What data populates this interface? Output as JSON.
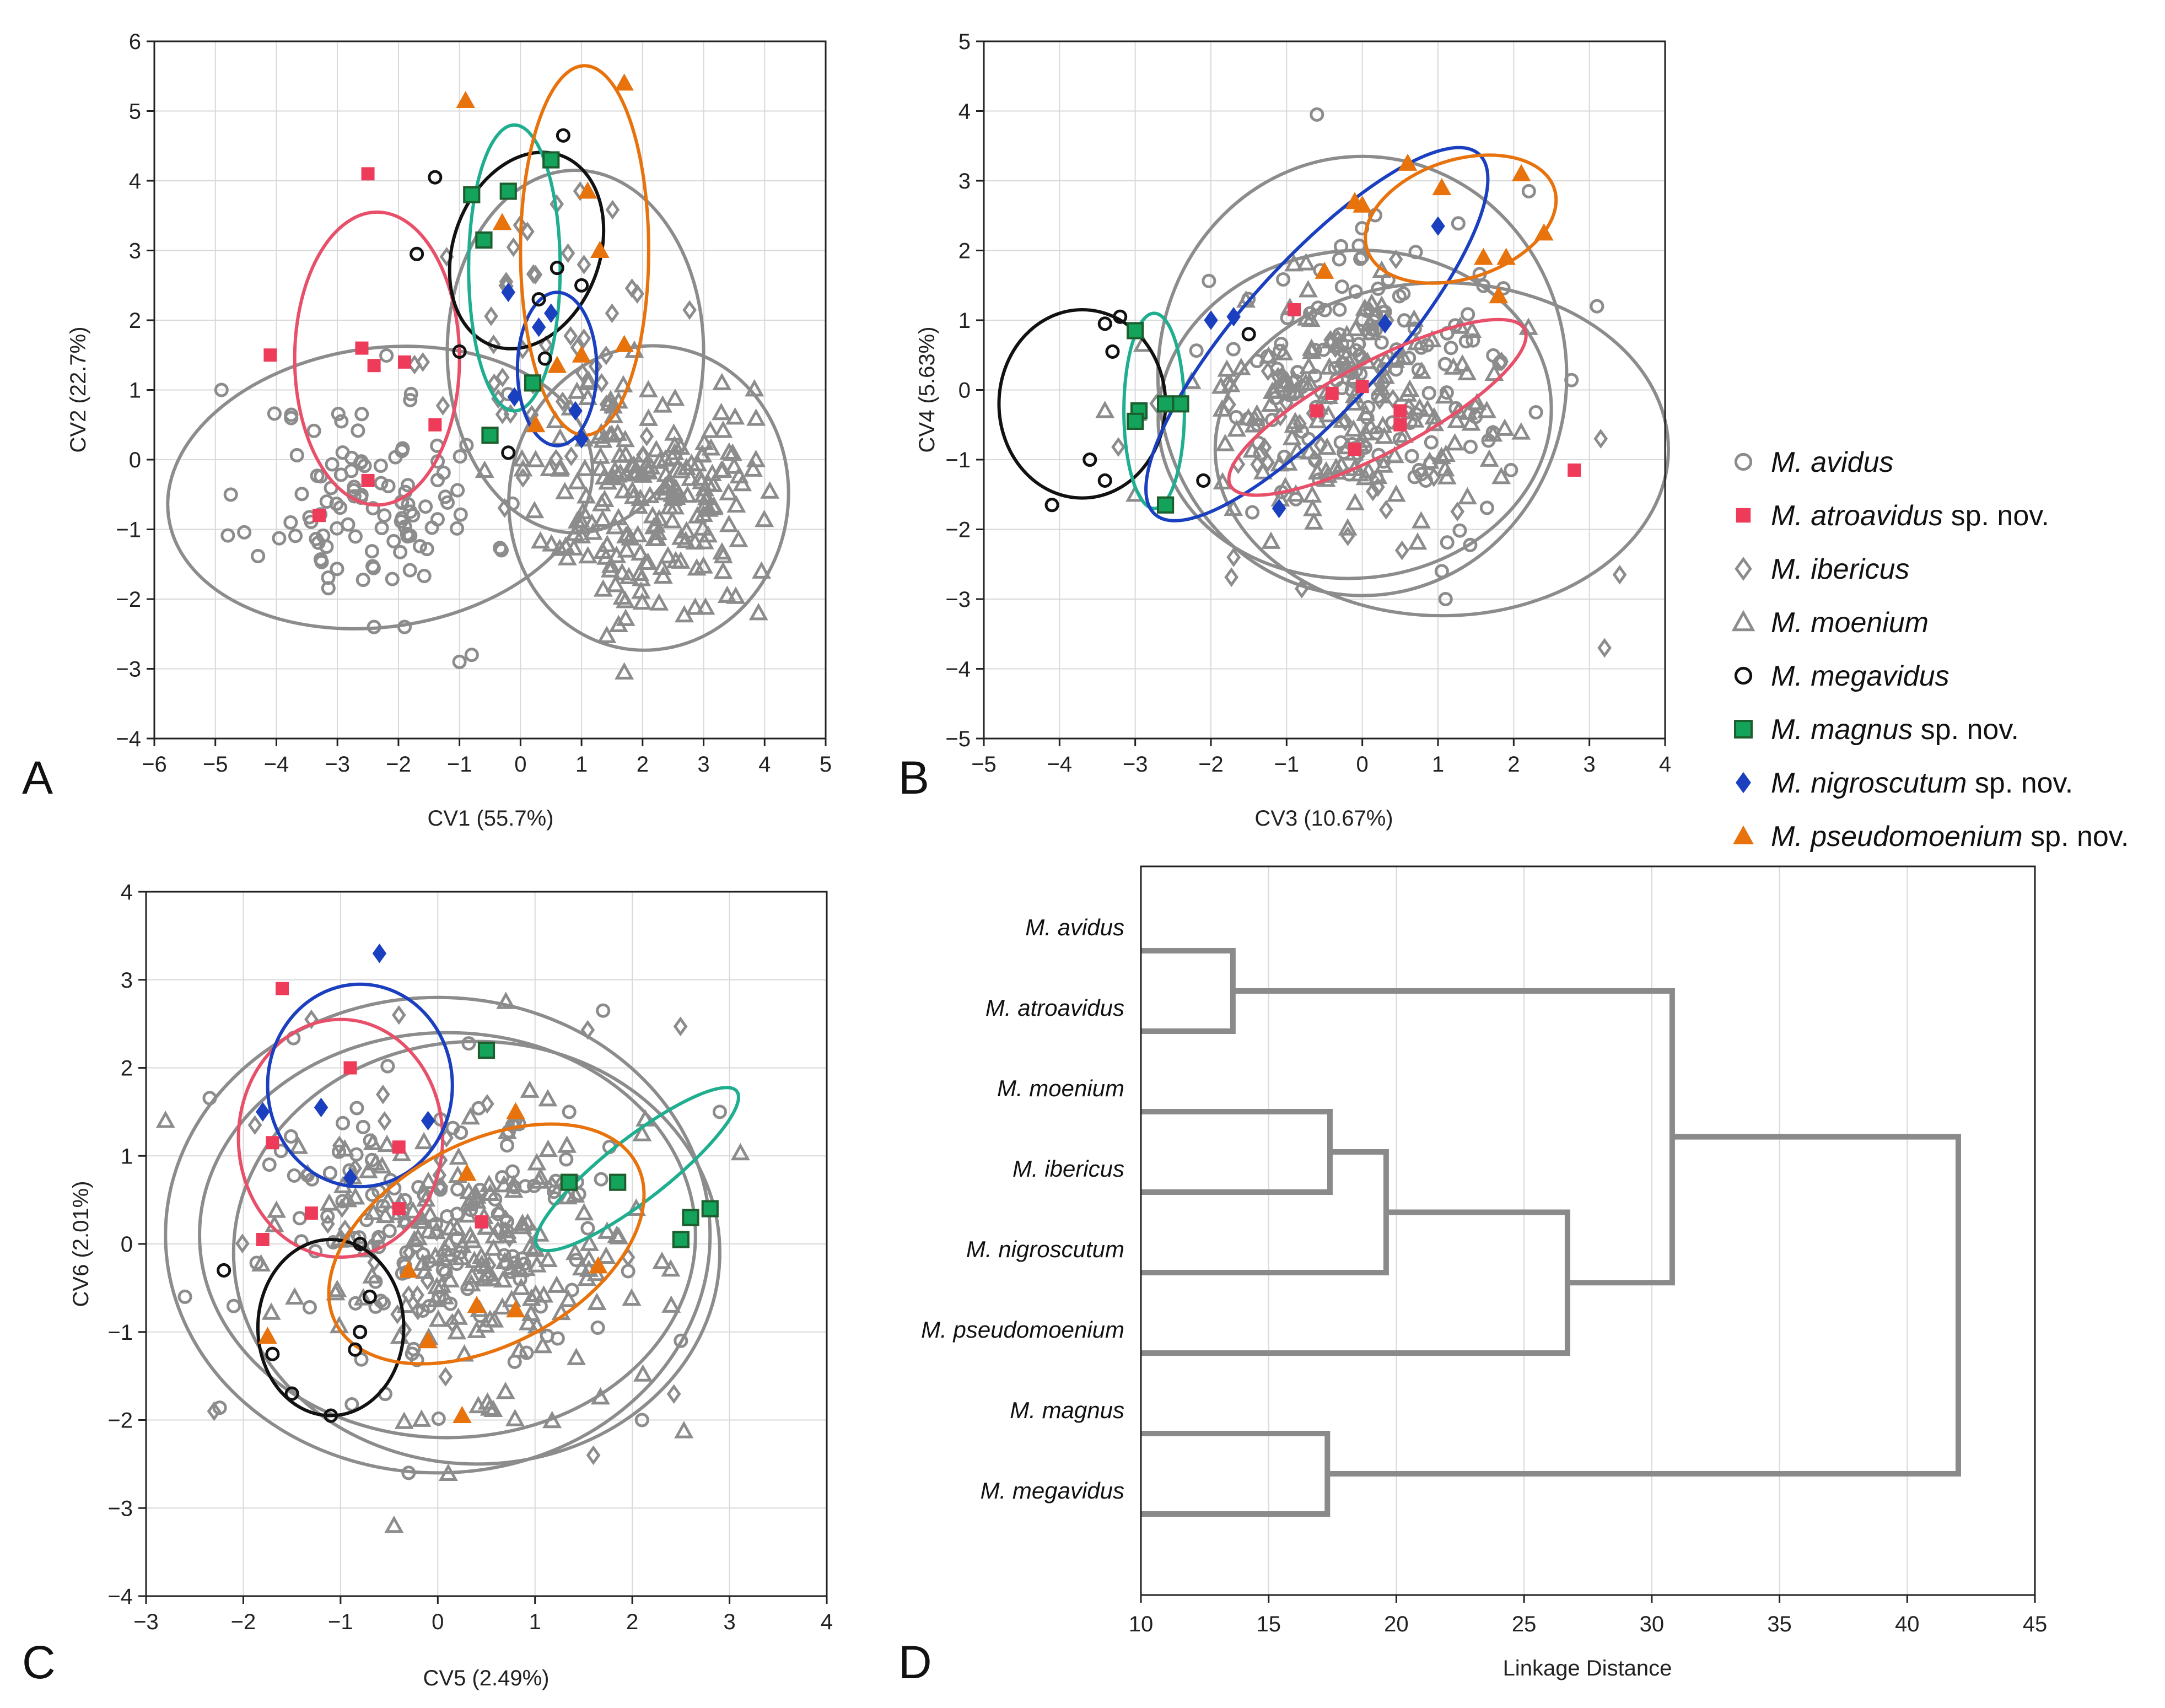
{
  "chart_data": [
    {
      "panel": "A",
      "type": "scatter",
      "xlabel": "CV1 (55.7%)",
      "ylabel": "CV2 (22.7%)",
      "xlim": [
        -6,
        5
      ],
      "ylim": [
        -4,
        6
      ],
      "xticks": [
        -6,
        -5,
        -4,
        -3,
        -2,
        -1,
        0,
        1,
        2,
        3,
        4,
        5
      ],
      "yticks": [
        -4,
        -3,
        -2,
        -1,
        0,
        1,
        2,
        3,
        4,
        5,
        6
      ],
      "grid": true,
      "ellipses": [
        {
          "series": "M. avidus",
          "cx": -2.3,
          "cy": -0.4,
          "rx": 3.5,
          "ry": 2.0,
          "angle": 8
        },
        {
          "series": "M. ibericus",
          "cx": 0.9,
          "cy": 1.55,
          "rx": 2.1,
          "ry": 2.6,
          "angle": 0
        },
        {
          "series": "M. moenium",
          "cx": 2.1,
          "cy": -0.55,
          "rx": 2.5,
          "ry": 2.0,
          "angle": 80
        },
        {
          "series": "M. atroavidus sp. nov.",
          "cx": -2.35,
          "cy": 1.45,
          "rx": 1.35,
          "ry": 2.1,
          "angle": 0
        },
        {
          "series": "M. megavidus",
          "cx": 0.1,
          "cy": 3.0,
          "rx": 1.2,
          "ry": 1.45,
          "angle": -20
        },
        {
          "series": "M. magnus sp. nov.",
          "cx": -0.1,
          "cy": 2.75,
          "rx": 0.75,
          "ry": 2.05,
          "angle": 0
        },
        {
          "series": "M. nigroscutum sp. nov.",
          "cx": 0.6,
          "cy": 1.3,
          "rx": 0.65,
          "ry": 1.1,
          "angle": 0
        },
        {
          "series": "M. pseudomoenium sp. nov.",
          "cx": 1.05,
          "cy": 3.0,
          "rx": 1.05,
          "ry": 2.65,
          "angle": 0
        }
      ],
      "series": [
        {
          "name": "M. atroavidus sp. nov.",
          "points": [
            [
              -2.5,
              4.1
            ],
            [
              -4.1,
              1.5
            ],
            [
              -2.6,
              1.6
            ],
            [
              -2.4,
              1.35
            ],
            [
              -1.9,
              1.4
            ],
            [
              -1.4,
              0.5
            ],
            [
              -2.5,
              -0.3
            ],
            [
              -3.3,
              -0.8
            ]
          ]
        },
        {
          "name": "M. megavidus",
          "points": [
            [
              -1.4,
              4.05
            ],
            [
              -1.7,
              2.95
            ],
            [
              -1.0,
              1.55
            ],
            [
              0.3,
              2.3
            ],
            [
              0.6,
              2.75
            ],
            [
              0.7,
              4.65
            ],
            [
              1.0,
              2.5
            ],
            [
              0.4,
              1.45
            ],
            [
              -0.2,
              0.1
            ]
          ]
        },
        {
          "name": "M. magnus sp. nov.",
          "points": [
            [
              -0.8,
              3.8
            ],
            [
              -0.6,
              3.15
            ],
            [
              -0.2,
              3.85
            ],
            [
              0.5,
              4.3
            ],
            [
              0.2,
              1.1
            ],
            [
              -0.5,
              0.35
            ]
          ]
        },
        {
          "name": "M. nigroscutum sp. nov.",
          "points": [
            [
              -0.2,
              2.4
            ],
            [
              0.5,
              2.1
            ],
            [
              0.3,
              1.9
            ],
            [
              -0.1,
              0.9
            ],
            [
              0.9,
              0.7
            ],
            [
              1.0,
              0.3
            ]
          ]
        },
        {
          "name": "M. pseudomoenium sp. nov.",
          "points": [
            [
              -0.9,
              5.15
            ],
            [
              1.7,
              5.4
            ],
            [
              1.1,
              3.85
            ],
            [
              1.3,
              3.0
            ],
            [
              -0.3,
              3.4
            ],
            [
              0.6,
              1.35
            ],
            [
              1.7,
              1.65
            ],
            [
              1.0,
              1.5
            ],
            [
              0.25,
              0.5
            ]
          ]
        }
      ]
    },
    {
      "panel": "B",
      "type": "scatter",
      "xlabel": "CV3 (10.67%)",
      "ylabel": "CV4 (5.63%)",
      "xlim": [
        -5,
        4
      ],
      "ylim": [
        -5,
        5
      ],
      "xticks": [
        -5,
        -4,
        -3,
        -2,
        -1,
        0,
        1,
        2,
        3,
        4
      ],
      "yticks": [
        -5,
        -4,
        -3,
        -2,
        -1,
        0,
        1,
        2,
        3,
        4,
        5
      ],
      "grid": true,
      "ellipses": [
        {
          "series": "M. avidus",
          "cx": 0.0,
          "cy": 0.2,
          "rx": 2.7,
          "ry": 3.15,
          "angle": 0
        },
        {
          "series": "M. ibericus",
          "cx": -0.1,
          "cy": -0.35,
          "rx": 2.6,
          "ry": 2.35,
          "angle": 5
        },
        {
          "series": "M. moenium",
          "cx": 1.05,
          "cy": -0.85,
          "rx": 2.2,
          "ry": 3.25,
          "angle": 90
        },
        {
          "series": "M. megavidus",
          "cx": -3.7,
          "cy": -0.2,
          "rx": 1.1,
          "ry": 1.35,
          "angle": 0
        },
        {
          "series": "M. magnus sp. nov.",
          "cx": -2.75,
          "cy": -0.3,
          "rx": 0.4,
          "ry": 1.4,
          "angle": 0
        },
        {
          "series": "M. nigroscutum sp. nov.",
          "cx": -0.6,
          "cy": 0.8,
          "rx": 3.2,
          "ry": 1.05,
          "angle": 48
        },
        {
          "series": "M. atroavidus sp. nov.",
          "cx": 0.2,
          "cy": -0.25,
          "rx": 2.2,
          "ry": 0.65,
          "angle": 28
        },
        {
          "series": "M. pseudomoenium sp. nov.",
          "cx": 1.3,
          "cy": 2.45,
          "rx": 1.3,
          "ry": 0.85,
          "angle": 18
        }
      ],
      "series": [
        {
          "name": "M. atroavidus sp. nov.",
          "points": [
            [
              -0.9,
              1.15
            ],
            [
              -0.6,
              -0.3
            ],
            [
              -0.4,
              -0.05
            ],
            [
              0.0,
              0.05
            ],
            [
              -0.1,
              -0.85
            ],
            [
              0.5,
              -0.5
            ],
            [
              0.5,
              -0.3
            ],
            [
              2.8,
              -1.15
            ]
          ]
        },
        {
          "name": "M. megavidus",
          "points": [
            [
              -3.4,
              0.95
            ],
            [
              -3.2,
              1.05
            ],
            [
              -3.3,
              0.55
            ],
            [
              -3.6,
              -1.0
            ],
            [
              -3.4,
              -1.3
            ],
            [
              -4.1,
              -1.65
            ],
            [
              -2.1,
              -1.3
            ],
            [
              -1.5,
              0.8
            ]
          ]
        },
        {
          "name": "M. magnus sp. nov.",
          "points": [
            [
              -3.0,
              0.85
            ],
            [
              -2.95,
              -0.3
            ],
            [
              -3.0,
              -0.45
            ],
            [
              -2.6,
              -0.2
            ],
            [
              -2.4,
              -0.2
            ],
            [
              -2.6,
              -1.65
            ]
          ]
        },
        {
          "name": "M. nigroscutum sp. nov.",
          "points": [
            [
              -2.0,
              1.0
            ],
            [
              -1.7,
              1.05
            ],
            [
              1.0,
              2.35
            ],
            [
              0.3,
              0.95
            ],
            [
              -1.1,
              -1.7
            ]
          ]
        },
        {
          "name": "M. pseudomoenium sp. nov.",
          "points": [
            [
              0.6,
              3.25
            ],
            [
              1.05,
              2.9
            ],
            [
              2.1,
              3.1
            ],
            [
              2.4,
              2.25
            ],
            [
              1.6,
              1.9
            ],
            [
              1.9,
              1.9
            ],
            [
              1.8,
              1.35
            ],
            [
              -0.1,
              2.7
            ],
            [
              0.0,
              2.65
            ],
            [
              -0.5,
              1.7
            ]
          ]
        }
      ]
    },
    {
      "panel": "C",
      "type": "scatter",
      "xlabel": "CV5 (2.49%)",
      "ylabel": "CV6 (2.01%)",
      "xlim": [
        -3,
        4
      ],
      "ylim": [
        -4,
        4
      ],
      "xticks": [
        -3,
        -2,
        -1,
        0,
        1,
        2,
        3,
        4
      ],
      "yticks": [
        -4,
        -3,
        -2,
        -1,
        0,
        1,
        2,
        3,
        4
      ],
      "grid": true,
      "ellipses": [
        {
          "series": "M. avidus",
          "cx": 0.0,
          "cy": 0.1,
          "rx": 2.8,
          "ry": 2.7,
          "angle": 0
        },
        {
          "series": "M. ibericus",
          "cx": 0.1,
          "cy": 0.1,
          "rx": 2.55,
          "ry": 2.3,
          "angle": 0
        },
        {
          "series": "M. moenium",
          "cx": 0.4,
          "cy": -0.1,
          "rx": 2.5,
          "ry": 2.4,
          "angle": 0
        },
        {
          "series": "M. atroavidus sp. nov.",
          "cx": -1.0,
          "cy": 1.2,
          "rx": 1.05,
          "ry": 1.35,
          "angle": 0
        },
        {
          "series": "M. nigroscutum sp. nov.",
          "cx": -0.8,
          "cy": 1.8,
          "rx": 0.95,
          "ry": 1.15,
          "angle": 0
        },
        {
          "series": "M. megavidus",
          "cx": -1.1,
          "cy": -0.95,
          "rx": 0.75,
          "ry": 1.0,
          "angle": 0
        },
        {
          "series": "M. magnus sp. nov.",
          "cx": 2.05,
          "cy": 0.85,
          "rx": 1.3,
          "ry": 0.35,
          "angle": 38
        },
        {
          "series": "M. pseudomoenium sp. nov.",
          "cx": 0.5,
          "cy": 0.0,
          "rx": 1.75,
          "ry": 1.15,
          "angle": 28
        }
      ],
      "series": [
        {
          "name": "M. atroavidus sp. nov.",
          "points": [
            [
              -1.6,
              2.9
            ],
            [
              -0.9,
              2.0
            ],
            [
              -1.7,
              1.15
            ],
            [
              -0.4,
              1.1
            ],
            [
              -1.3,
              0.35
            ],
            [
              -0.4,
              0.4
            ],
            [
              -1.8,
              0.05
            ],
            [
              0.45,
              0.25
            ]
          ]
        },
        {
          "name": "M. megavidus",
          "points": [
            [
              -2.2,
              -0.3
            ],
            [
              -0.8,
              0.0
            ],
            [
              -0.7,
              -0.6
            ],
            [
              -0.8,
              -1.0
            ],
            [
              -0.85,
              -1.2
            ],
            [
              -1.5,
              -1.7
            ],
            [
              -1.7,
              -1.25
            ],
            [
              -1.1,
              -1.95
            ]
          ]
        },
        {
          "name": "M. magnus sp. nov.",
          "points": [
            [
              0.5,
              2.2
            ],
            [
              1.35,
              0.7
            ],
            [
              1.85,
              0.7
            ],
            [
              2.6,
              0.3
            ],
            [
              2.8,
              0.4
            ],
            [
              2.5,
              0.05
            ]
          ]
        },
        {
          "name": "M. nigroscutum sp. nov.",
          "points": [
            [
              -0.6,
              3.3
            ],
            [
              -1.8,
              1.5
            ],
            [
              -1.2,
              1.55
            ],
            [
              -0.1,
              1.4
            ],
            [
              -0.9,
              0.75
            ]
          ]
        },
        {
          "name": "M. pseudomoenium sp. nov.",
          "points": [
            [
              0.8,
              1.5
            ],
            [
              0.3,
              0.8
            ],
            [
              -0.3,
              -0.3
            ],
            [
              1.65,
              -0.25
            ],
            [
              0.4,
              -0.7
            ],
            [
              0.8,
              -0.75
            ],
            [
              -0.1,
              -1.1
            ],
            [
              -1.75,
              -1.05
            ],
            [
              0.25,
              -1.95
            ]
          ]
        }
      ]
    },
    {
      "panel": "D",
      "type": "dendrogram",
      "xlabel": "Linkage Distance",
      "xlim": [
        10,
        45
      ],
      "xticks": [
        10,
        15,
        20,
        25,
        30,
        35,
        40,
        45
      ],
      "grid": true,
      "leaves": [
        "M. avidus",
        "M. atroavidus",
        "M. moenium",
        "M. ibericus",
        "M. nigroscutum",
        "M. pseudomoenium",
        "M. magnus",
        "M. megavidus"
      ],
      "merges": [
        {
          "left": "M. avidus",
          "right": "M. atroavidus",
          "height": 13.6
        },
        {
          "left": "M. moenium",
          "right": "M. ibericus",
          "height": 17.4
        },
        {
          "left": "moenium+ibericus",
          "right": "M. nigroscutum",
          "height": 19.6
        },
        {
          "left": "moenium+ibericus+nigroscutum",
          "right": "M. pseudomoenium",
          "height": 26.7
        },
        {
          "left": "avidus+atroavidus",
          "right": "moenium+ibericus+nigroscutum+pseudomoenium",
          "height": 30.8
        },
        {
          "left": "M. magnus",
          "right": "M. megavidus",
          "height": 17.3
        },
        {
          "left": "six-species cluster",
          "right": "magnus+megavidus",
          "height": 42.0
        }
      ]
    }
  ],
  "legend": {
    "items": [
      {
        "name": "M. avidus",
        "suffix": "",
        "marker": "circle",
        "color": "#8c8c8c",
        "filled": false
      },
      {
        "name": "M. atroavidus",
        "suffix": " sp. nov.",
        "marker": "square",
        "color": "#ef3b5a",
        "filled": true
      },
      {
        "name": "M. ibericus",
        "suffix": "",
        "marker": "diamond",
        "color": "#8c8c8c",
        "filled": false
      },
      {
        "name": "M. moenium",
        "suffix": "",
        "marker": "triangle",
        "color": "#8c8c8c",
        "filled": false
      },
      {
        "name": "M. megavidus",
        "suffix": "",
        "marker": "circle",
        "color": "#111111",
        "filled": false
      },
      {
        "name": "M. magnus",
        "suffix": " sp. nov.",
        "marker": "square-outlined",
        "color": "#13a35a",
        "filled": true
      },
      {
        "name": "M. nigroscutum",
        "suffix": " sp. nov.",
        "marker": "diamond",
        "color": "#1a3fbf",
        "filled": true
      },
      {
        "name": "M. pseudomoenium",
        "suffix": " sp. nov.",
        "marker": "triangle",
        "color": "#e8720c",
        "filled": true
      }
    ]
  },
  "panel_letters": [
    "A",
    "B",
    "C",
    "D"
  ],
  "colors": {
    "gray": "#8c8c8c",
    "grid": "#d9d9d9",
    "atroavidus": "#ef3b5a",
    "atroavidus_ellipse": "#e8506a",
    "megavidus": "#111111",
    "magnus": "#13a35a",
    "magnus_ellipse": "#1fae8f",
    "nigroscutum": "#1a3fbf",
    "pseudomoenium": "#e8720c",
    "dendro": "#8a8a8a"
  }
}
